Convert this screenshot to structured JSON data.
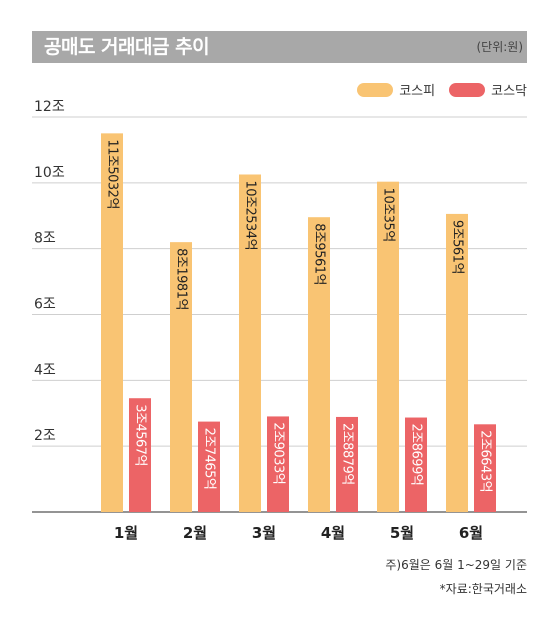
{
  "header": {
    "title": "공매도 거래대금 추이",
    "unit": "(단위:원)"
  },
  "colors": {
    "kospi": "#f9c473",
    "kosdaq": "#ec6466",
    "header_bg": "#a8a8a8"
  },
  "chart_data": {
    "type": "bar",
    "title": "공매도 거래대금 추이",
    "unit": "(단위:원)",
    "categories": [
      "1월",
      "2월",
      "3월",
      "4월",
      "5월",
      "6월"
    ],
    "y_ticks": [
      "2조",
      "4조",
      "6조",
      "8조",
      "10조",
      "12조"
    ],
    "ylim": [
      0,
      12
    ],
    "grid": true,
    "legend_position": "top-right",
    "series": [
      {
        "name": "코스피",
        "values": [
          11.5032,
          8.1981,
          10.2534,
          8.9561,
          10.035,
          9.0561
        ],
        "labels": [
          "11조5032억",
          "8조1981억",
          "10조2534억",
          "8조9561억",
          "10조35억",
          "9조561억"
        ]
      },
      {
        "name": "코스닥",
        "values": [
          3.4567,
          2.7465,
          2.9033,
          2.8879,
          2.8699,
          2.6643
        ],
        "labels": [
          "3조4567억",
          "2조7465억",
          "2조9033억",
          "2조8879억",
          "2조8699억",
          "2조6643억"
        ]
      }
    ]
  },
  "footer": {
    "note": "주)6월은 6월 1~29일 기준",
    "source": "*자료:한국거래소"
  }
}
